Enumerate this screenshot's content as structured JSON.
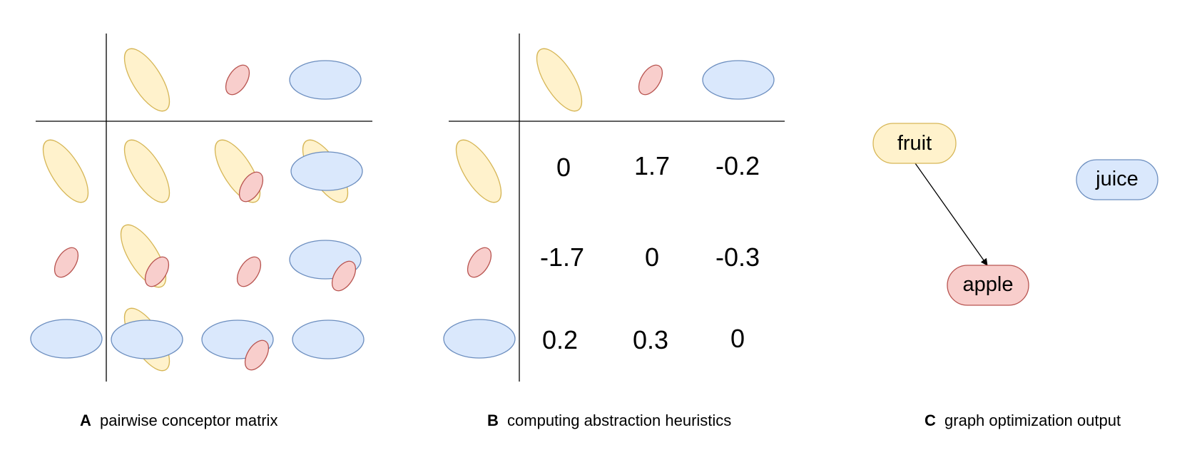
{
  "panels": {
    "a": {
      "letter": "A",
      "caption": "pairwise conceptor matrix"
    },
    "b": {
      "letter": "B",
      "caption": "computing abstraction heuristics",
      "matrix": [
        [
          "0",
          "1.7",
          "-0.2"
        ],
        [
          "-1.7",
          "0",
          "-0.3"
        ],
        [
          "0.2",
          "0.3",
          "0"
        ]
      ]
    },
    "c": {
      "letter": "C",
      "caption": "graph optimization output",
      "nodes": {
        "fruit": "fruit",
        "juice": "juice",
        "apple": "apple"
      }
    }
  },
  "colors": {
    "yellow_fill": "#fff2cc",
    "yellow_stroke": "#d6b656",
    "red_fill": "#f8cecc",
    "red_stroke": "#b85450",
    "blue_fill": "#dae8fc",
    "blue_stroke": "#6c8ebf"
  }
}
